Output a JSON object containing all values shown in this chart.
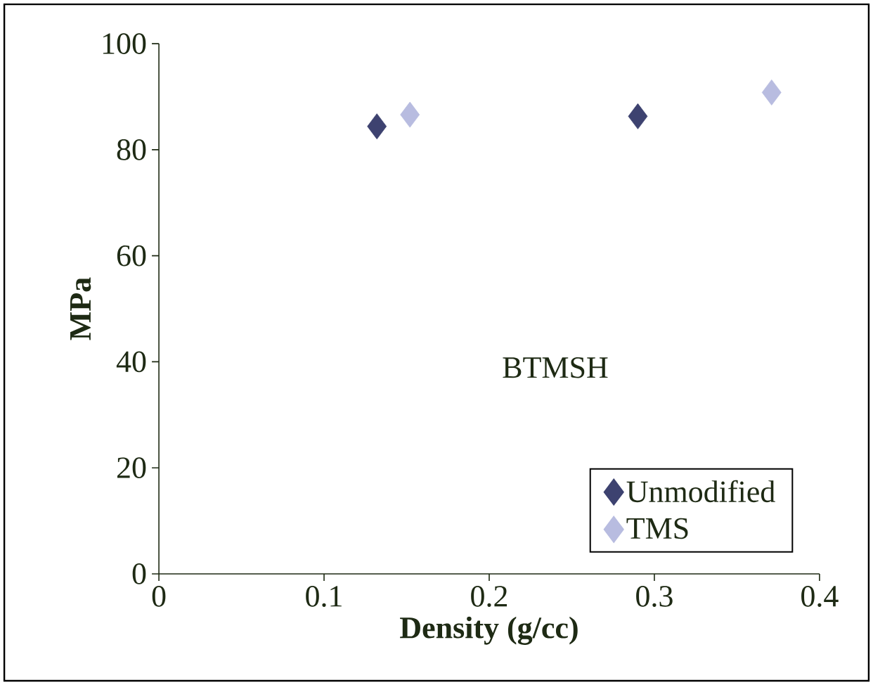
{
  "chart_data": {
    "type": "scatter",
    "xlabel": "Density (g/cc)",
    "ylabel": "MPa",
    "legend_title": "BTMSH",
    "legend": "bottom right",
    "marker": "diamond",
    "xlim": [
      0,
      0.4
    ],
    "ylim": [
      0,
      100
    ],
    "xticks": [
      0,
      0.1,
      0.2,
      0.3,
      0.4
    ],
    "yticks": [
      0,
      20,
      40,
      60,
      80,
      100
    ],
    "series": [
      {
        "name": "Unmodified",
        "color": "#3d4270",
        "x": [
          0.132,
          0.29
        ],
        "values": [
          84.4,
          86.3
        ]
      },
      {
        "name": "TMS",
        "color": "#b8bce0",
        "x": [
          0.152,
          0.371
        ],
        "values": [
          86.6,
          90.8
        ]
      }
    ]
  }
}
